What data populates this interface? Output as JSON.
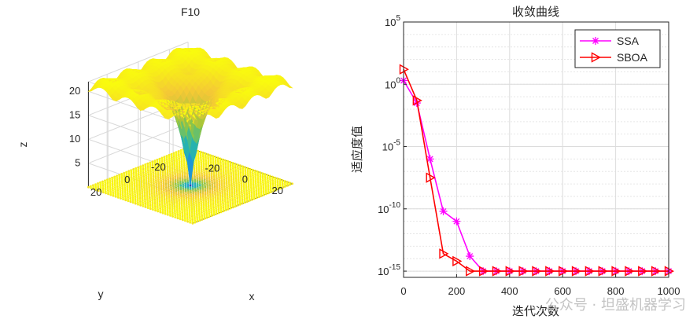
{
  "chart_data": [
    {
      "type": "surface3d",
      "title": "F10",
      "xlabel": "x",
      "ylabel": "y",
      "zlabel": "z",
      "x_ticks": [
        "-20",
        "0",
        "20"
      ],
      "y_ticks": [
        "-20",
        "0",
        "20"
      ],
      "z_ticks": [
        "5",
        "10",
        "15",
        "20"
      ],
      "xlim": [
        -32,
        32
      ],
      "ylim": [
        -32,
        32
      ],
      "zlim": [
        0,
        22
      ],
      "function": "Ackley",
      "colormap": [
        "#3e26a8",
        "#1e9bd8",
        "#2ab8a5",
        "#9cc63a",
        "#f4c737",
        "#f9fb0e"
      ]
    },
    {
      "type": "line",
      "title": "收敛曲线",
      "xlabel": "迭代次数",
      "ylabel": "适应度值",
      "yscale": "log",
      "xlim": [
        0,
        1000
      ],
      "ylim_exp": [
        -15.5,
        5
      ],
      "x_ticks": [
        "0",
        "200",
        "400",
        "600",
        "800",
        "1000"
      ],
      "y_ticks": [
        {
          "base": "10",
          "exp": "5",
          "value": 5
        },
        {
          "base": "10",
          "exp": "0",
          "value": 0
        },
        {
          "base": "10",
          "exp": "-5",
          "value": -5
        },
        {
          "base": "10",
          "exp": "-10",
          "value": -10
        },
        {
          "base": "10",
          "exp": "-15",
          "value": -15
        }
      ],
      "legend_position": "top-right",
      "series": [
        {
          "name": "SSA",
          "color": "#ff00ff",
          "marker": "star",
          "x": [
            0,
            50,
            100,
            150,
            200,
            250,
            300,
            350,
            400,
            450,
            500,
            550,
            600,
            650,
            700,
            750,
            800,
            850,
            900,
            950,
            1000
          ],
          "log10_y": [
            0.3,
            -1.5,
            -6.0,
            -10.2,
            -11.0,
            -13.8,
            -15.0,
            -15.0,
            -15.0,
            -15.0,
            -15.0,
            -15.0,
            -15.0,
            -15.0,
            -15.0,
            -15.0,
            -15.0,
            -15.0,
            -15.0,
            -15.0,
            -15.0
          ]
        },
        {
          "name": "SBOA",
          "color": "#ff0000",
          "marker": "triangle-right",
          "x": [
            0,
            50,
            100,
            150,
            200,
            250,
            300,
            350,
            400,
            450,
            500,
            550,
            600,
            650,
            700,
            750,
            800,
            850,
            900,
            950,
            1000
          ],
          "log10_y": [
            1.2,
            -1.3,
            -7.5,
            -13.6,
            -14.2,
            -15.0,
            -15.0,
            -15.0,
            -15.0,
            -15.0,
            -15.0,
            -15.0,
            -15.0,
            -15.0,
            -15.0,
            -15.0,
            -15.0,
            -15.0,
            -15.0,
            -15.0,
            -15.0
          ]
        }
      ]
    }
  ],
  "watermark": "公众号 · 坦盛机器学习"
}
